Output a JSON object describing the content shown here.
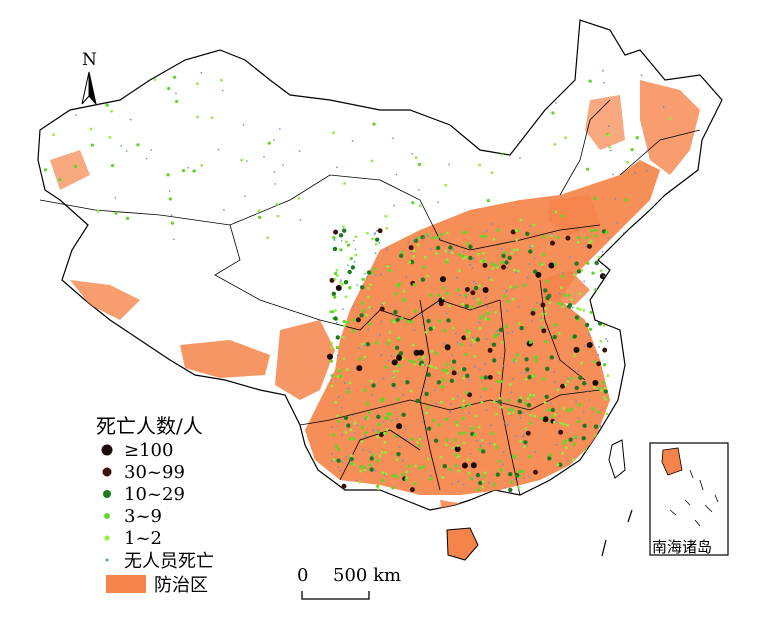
{
  "north_label": "N",
  "legend": {
    "title": "死亡人数/人",
    "items": [
      {
        "label": "≥100",
        "color": "#1a0a0a",
        "size": 5.5,
        "symbol": "dot"
      },
      {
        "label": "30~99",
        "color": "#3a1208",
        "size": 4.5,
        "symbol": "dot"
      },
      {
        "label": "10~29",
        "color": "#1e7a1e",
        "size": 4.0,
        "symbol": "dot"
      },
      {
        "label": "3~9",
        "color": "#5fd62a",
        "size": 3.0,
        "symbol": "dot"
      },
      {
        "label": "1~2",
        "color": "#8cf03a",
        "size": 2.5,
        "symbol": "dot"
      },
      {
        "label": "无人员死亡",
        "color": "#5a8fd8",
        "size": 1.5,
        "symbol": "dot"
      }
    ],
    "area": {
      "label": "防治区",
      "color": "#f5844a"
    }
  },
  "scale": {
    "zero": "0",
    "distance": "500 km"
  },
  "inset_label": "南海诸岛",
  "colors": {
    "boundary": "#000000",
    "background": "#ffffff"
  }
}
